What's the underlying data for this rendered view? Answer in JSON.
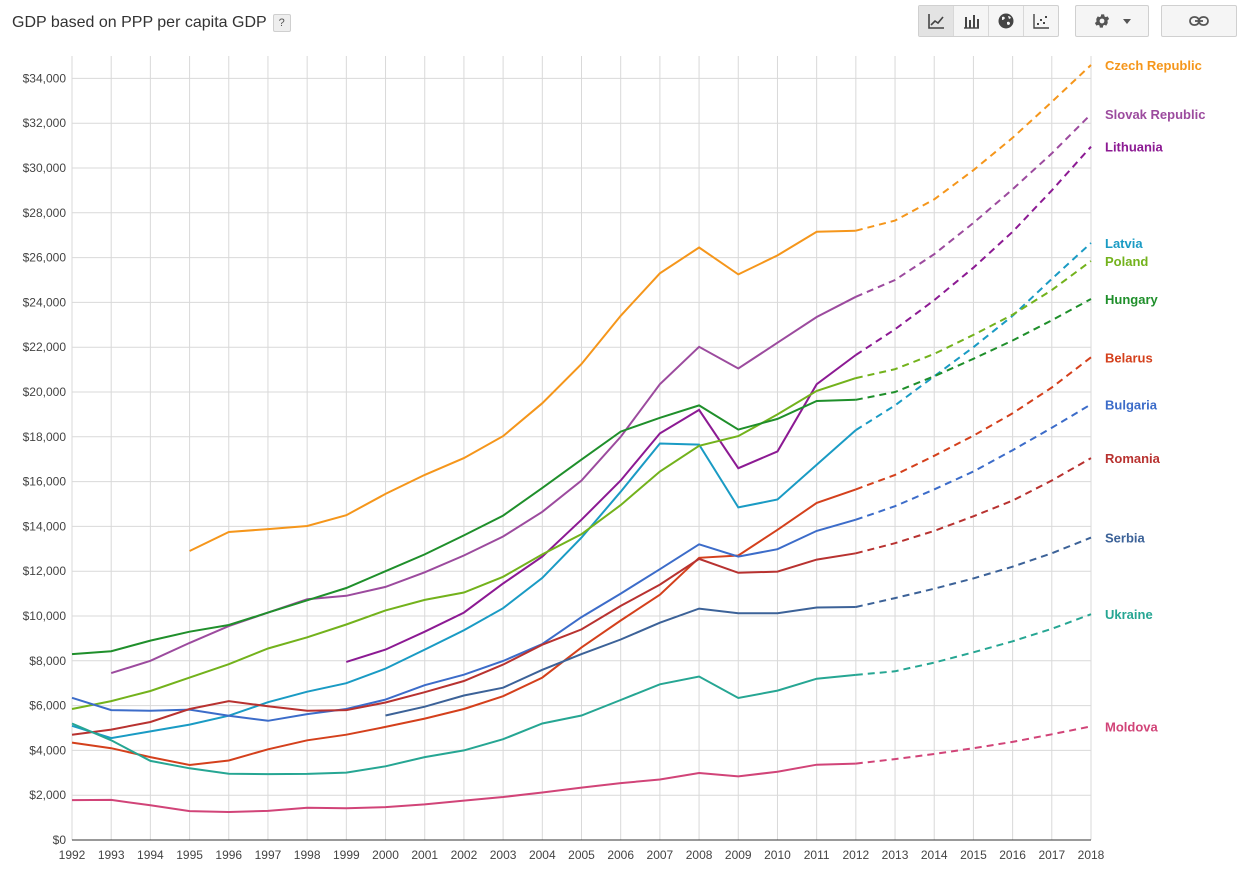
{
  "header": {
    "title": "GDP based on PPP per capita GDP",
    "help_label": "?"
  },
  "toolbar": {
    "chart_types": [
      "line-chart-icon",
      "bar-chart-icon",
      "globe-icon",
      "scatter-icon"
    ],
    "active_chart_type": "line-chart-icon",
    "settings_icon": "gear-icon",
    "link_icon": "link-icon"
  },
  "colors": {
    "grid": "#d9d9d9",
    "axis": "#333333",
    "tick_text": "#444444"
  },
  "chart_data": {
    "type": "line",
    "title": "GDP based on PPP per capita GDP",
    "xlabel": "",
    "ylabel": "",
    "x": [
      1992,
      1993,
      1994,
      1995,
      1996,
      1997,
      1998,
      1999,
      2000,
      2001,
      2002,
      2003,
      2004,
      2005,
      2006,
      2007,
      2008,
      2009,
      2010,
      2011,
      2012,
      2013,
      2014,
      2015,
      2016,
      2017,
      2018
    ],
    "xlim": [
      1992,
      2018
    ],
    "ylim": [
      0,
      35000
    ],
    "y_ticks": [
      0,
      2000,
      4000,
      6000,
      8000,
      10000,
      12000,
      14000,
      16000,
      18000,
      20000,
      22000,
      24000,
      26000,
      28000,
      30000,
      32000,
      34000
    ],
    "y_tick_labels": [
      "$0",
      "$2,000",
      "$4,000",
      "$6,000",
      "$8,000",
      "$10,000",
      "$12,000",
      "$14,000",
      "$16,000",
      "$18,000",
      "$20,000",
      "$22,000",
      "$24,000",
      "$26,000",
      "$28,000",
      "$30,000",
      "$32,000",
      "$34,000"
    ],
    "projection_from": 2012,
    "grid": true,
    "legend": "right (labels at line ends)",
    "series": [
      {
        "name": "Czech Republic",
        "color": "#f5961b",
        "values": [
          null,
          null,
          null,
          12900,
          13750,
          13880,
          14020,
          14500,
          15450,
          16300,
          17050,
          18030,
          19500,
          21250,
          23400,
          25300,
          26450,
          25250,
          26100,
          27150,
          27200,
          27650,
          28600,
          29900,
          31350,
          32950,
          34600
        ]
      },
      {
        "name": "Slovak Republic",
        "color": "#9c4b9e",
        "values": [
          null,
          7450,
          8000,
          8800,
          9550,
          10150,
          10750,
          10900,
          11300,
          11950,
          12700,
          13550,
          14650,
          16050,
          18000,
          20350,
          22020,
          21050,
          22200,
          23350,
          24250,
          25000,
          26150,
          27550,
          29050,
          30650,
          32400
        ]
      },
      {
        "name": "Lithuania",
        "color": "#8c1a93",
        "values": [
          null,
          null,
          null,
          null,
          null,
          null,
          null,
          7950,
          8500,
          9300,
          10150,
          11450,
          12650,
          14300,
          16050,
          18150,
          19200,
          16600,
          17350,
          20350,
          21650,
          22800,
          24100,
          25550,
          27150,
          29000,
          30950
        ]
      },
      {
        "name": "Latvia",
        "color": "#1a9bc4",
        "values": [
          5100,
          4550,
          4850,
          5150,
          5550,
          6150,
          6620,
          7000,
          7650,
          8500,
          9360,
          10350,
          11700,
          13500,
          15550,
          17700,
          17650,
          14850,
          15200,
          16750,
          18300,
          19400,
          20700,
          22000,
          23400,
          25050,
          26650
        ]
      },
      {
        "name": "Poland",
        "color": "#73b21c",
        "values": [
          5850,
          6200,
          6650,
          7250,
          7850,
          8550,
          9050,
          9620,
          10250,
          10720,
          11050,
          11750,
          12750,
          13650,
          14950,
          16450,
          17600,
          18030,
          19000,
          20050,
          20620,
          21020,
          21700,
          22550,
          23450,
          24550,
          25850
        ]
      },
      {
        "name": "Hungary",
        "color": "#1f8f2b",
        "values": [
          8300,
          8430,
          8900,
          9300,
          9600,
          10150,
          10700,
          11250,
          12000,
          12750,
          13600,
          14480,
          15720,
          16980,
          18230,
          18850,
          19400,
          18320,
          18800,
          19600,
          19650,
          20000,
          20700,
          21480,
          22300,
          23200,
          24150
        ]
      },
      {
        "name": "Belarus",
        "color": "#d4401c",
        "values": [
          4350,
          4100,
          3700,
          3350,
          3550,
          4050,
          4450,
          4700,
          5050,
          5420,
          5850,
          6420,
          7250,
          8600,
          9800,
          10950,
          12600,
          12700,
          13850,
          15050,
          15650,
          16300,
          17150,
          18050,
          19050,
          20200,
          21550
        ]
      },
      {
        "name": "Bulgaria",
        "color": "#3c6cc9",
        "values": [
          6350,
          5800,
          5770,
          5820,
          5550,
          5320,
          5620,
          5850,
          6270,
          6910,
          7380,
          7990,
          8750,
          9950,
          11000,
          12090,
          13200,
          12650,
          12980,
          13800,
          14300,
          14900,
          15650,
          16450,
          17400,
          18400,
          19450
        ]
      },
      {
        "name": "Romania",
        "color": "#b83230",
        "values": [
          4700,
          4930,
          5270,
          5850,
          6200,
          5970,
          5770,
          5800,
          6140,
          6600,
          7100,
          7830,
          8720,
          9400,
          10450,
          11400,
          12550,
          11930,
          11980,
          12520,
          12800,
          13250,
          13800,
          14450,
          15150,
          16050,
          17050
        ]
      },
      {
        "name": "Serbia",
        "color": "#3c6298",
        "values": [
          null,
          null,
          null,
          null,
          null,
          null,
          null,
          null,
          5560,
          5950,
          6450,
          6800,
          7600,
          8300,
          8950,
          9700,
          10330,
          10120,
          10120,
          10380,
          10400,
          10800,
          11220,
          11680,
          12200,
          12800,
          13500
        ]
      },
      {
        "name": "Ukraine",
        "color": "#26a693",
        "values": [
          5200,
          4450,
          3530,
          3200,
          2960,
          2940,
          2950,
          3010,
          3290,
          3700,
          4000,
          4500,
          5200,
          5560,
          6250,
          6950,
          7300,
          6340,
          6670,
          7200,
          7370,
          7530,
          7920,
          8380,
          8870,
          9430,
          10080
        ]
      },
      {
        "name": "Moldova",
        "color": "#d14478",
        "values": [
          1780,
          1790,
          1550,
          1290,
          1250,
          1300,
          1440,
          1420,
          1470,
          1590,
          1760,
          1920,
          2120,
          2340,
          2540,
          2700,
          2990,
          2840,
          3050,
          3360,
          3410,
          3610,
          3840,
          4100,
          4380,
          4720,
          5070
        ]
      }
    ]
  }
}
